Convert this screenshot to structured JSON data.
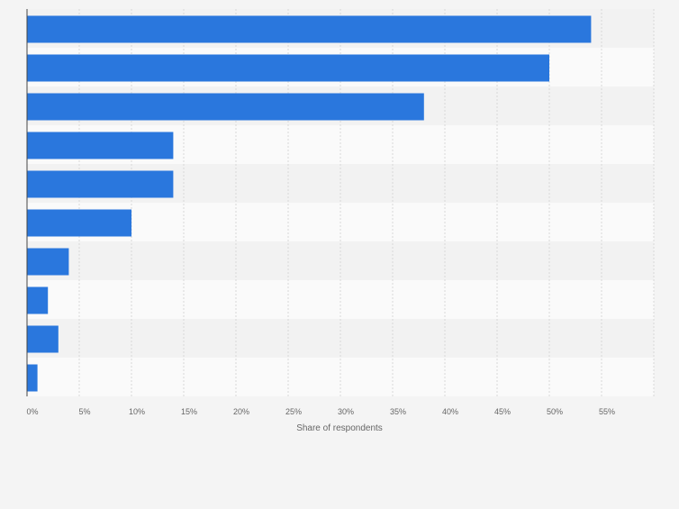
{
  "chart_data": {
    "type": "bar",
    "orientation": "horizontal",
    "categories": [
      "",
      "",
      "",
      "",
      "",
      "",
      "",
      "",
      "",
      ""
    ],
    "values": [
      54,
      50,
      38,
      14,
      14,
      10,
      4,
      2,
      3,
      1
    ],
    "x_ticks": [
      "0%",
      "5%",
      "10%",
      "15%",
      "20%",
      "25%",
      "30%",
      "35%",
      "40%",
      "45%",
      "50%",
      "55%"
    ],
    "xlabel": "Share of respondents",
    "xlim": [
      0,
      60
    ],
    "grid": true,
    "bar_color": "#2a77dd",
    "band_colors": [
      "#f2f2f2",
      "#fafafa"
    ]
  }
}
